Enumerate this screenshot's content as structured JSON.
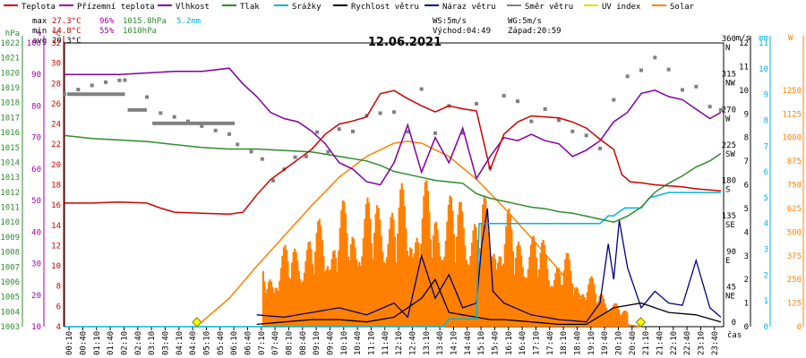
{
  "chart_data": {
    "type": "line",
    "title": "12.06.2021",
    "x_unit_label": "čas",
    "legend": [
      {
        "name": "Teplota",
        "color": "#cc0000"
      },
      {
        "name": "Přízemní teplota",
        "color": "#a000a0"
      },
      {
        "name": "Vlhkost",
        "color": "#8000a0"
      },
      {
        "name": "Tlak",
        "color": "#2e8b2e"
      },
      {
        "name": "Srážky",
        "color": "#00b4d8"
      },
      {
        "name": "Rychlost větru",
        "color": "#000000"
      },
      {
        "name": "Náraz větru",
        "color": "#00007f"
      },
      {
        "name": "Směr větru",
        "color": "#808080"
      },
      {
        "name": "UV index",
        "color": "#e0e000"
      },
      {
        "name": "Solar",
        "color": "#ff8000"
      }
    ],
    "stats": {
      "max_label": "max",
      "max_temp": "27.3°C",
      "max_hum": "96%",
      "max_press": "1015.8hPa",
      "rain": "5.2mm",
      "min_label": "min",
      "min_temp": "14.8°C",
      "min_hum": "55%",
      "min_press": "1010hPa",
      "avg_label": "avg",
      "avg_temp": "20.3°C",
      "ws": "WS:5m/s",
      "wg": "WG:5m/s",
      "sunrise": "Východ:04:49",
      "sunset": "Západ:20:59"
    },
    "axes": {
      "hpa": {
        "label": "hPa",
        "ticks": [
          "1022",
          "1021",
          "1020",
          "1019",
          "1018",
          "1017",
          "1016",
          "1015",
          "1014",
          "1013",
          "1012",
          "1011",
          "1010",
          "1009",
          "1008",
          "1007",
          "1006",
          "1005",
          "1004",
          "1003"
        ],
        "color": "#2e8b2e"
      },
      "pct": {
        "label": "%",
        "ticks": [
          "100",
          "90",
          "80",
          "70",
          "60",
          "50",
          "40",
          "30",
          "20",
          "10"
        ],
        "color": "#a000a0"
      },
      "celsius": {
        "label": "°C",
        "ticks": [
          "32",
          "30",
          "28",
          "26",
          "24",
          "22",
          "20",
          "18",
          "16",
          "14",
          "12",
          "10",
          "8",
          "6",
          "4"
        ],
        "color": "#cc0000"
      },
      "ms": {
        "label": "m/s",
        "ticks": [
          "12",
          "11",
          "10",
          "9",
          "8",
          "7",
          "6",
          "5",
          "4",
          "3",
          "2",
          "1",
          "0"
        ],
        "color": "#000000"
      },
      "dir": {
        "ticks": [
          "360",
          "315",
          "270",
          "225",
          "180",
          "135",
          "90",
          "45",
          "0"
        ],
        "names": [
          "N",
          "NW",
          "W",
          "SW",
          "S",
          "SE",
          "E",
          "NE",
          ""
        ]
      },
      "mm": {
        "label": "mm",
        "ticks": [
          "11",
          "10",
          "9",
          "8",
          "7",
          "6",
          "5",
          "4",
          "3",
          "2",
          "1",
          "0"
        ],
        "color": "#00b4d8"
      },
      "w": {
        "label": "W",
        "ticks": [
          "1500",
          "1375",
          "1250",
          "1125",
          "1000",
          "875",
          "750",
          "625",
          "500",
          "375",
          "250",
          "125",
          "0"
        ],
        "color": "#ff8000"
      }
    },
    "x_ticks": [
      "00:10",
      "00:40",
      "01:10",
      "01:40",
      "02:10",
      "02:40",
      "03:10",
      "03:40",
      "04:10",
      "04:40",
      "05:10",
      "05:40",
      "06:10",
      "06:40",
      "07:10",
      "07:40",
      "08:10",
      "08:40",
      "09:10",
      "09:40",
      "10:10",
      "10:40",
      "11:10",
      "11:40",
      "12:10",
      "12:40",
      "13:10",
      "13:40",
      "14:10",
      "14:40",
      "15:10",
      "15:40",
      "16:10",
      "16:40",
      "17:10",
      "17:40",
      "18:10",
      "18:40",
      "19:10",
      "19:40",
      "20:10",
      "20:40",
      "21:10",
      "21:40",
      "22:10",
      "22:40",
      "23:10",
      "23:40"
    ],
    "series": [
      {
        "name": "Teplota",
        "unit": "°C",
        "x": [
          0,
          1,
          2,
          3,
          3.5,
          4,
          5,
          6,
          6.5,
          7,
          7.5,
          8,
          8.5,
          9,
          9.5,
          10,
          10.5,
          11,
          11.5,
          12,
          12.5,
          13,
          13.5,
          14,
          14.5,
          15,
          15.5,
          16,
          16.5,
          17,
          17.5,
          18,
          18.5,
          19,
          19.5,
          20,
          20.3,
          20.6,
          21,
          21.5,
          22,
          22.5,
          23,
          23.5,
          23.9
        ],
        "y": [
          16.2,
          16.2,
          16.3,
          16.2,
          15.7,
          15.3,
          15.2,
          15.1,
          15.3,
          17.0,
          18.5,
          19.5,
          20.5,
          21.5,
          23.0,
          24.0,
          24.3,
          24.7,
          27.0,
          27.3,
          26.5,
          25.8,
          25.2,
          25.8,
          25.5,
          25.3,
          19.5,
          23.0,
          24.2,
          24.8,
          24.7,
          24.6,
          24.2,
          23.6,
          22.5,
          21.5,
          19.0,
          18.3,
          18.2,
          18.0,
          17.9,
          17.8,
          17.6,
          17.5,
          17.4
        ]
      },
      {
        "name": "Vlhkost",
        "unit": "%",
        "x": [
          0,
          1,
          2,
          3,
          4,
          5,
          6,
          6.5,
          7,
          7.5,
          8,
          8.5,
          9,
          9.5,
          10,
          10.5,
          11,
          11.5,
          12,
          12.5,
          13,
          13.5,
          14,
          14.5,
          15,
          15.5,
          16,
          16.5,
          17,
          17.5,
          18,
          18.5,
          19,
          19.5,
          20,
          20.5,
          21,
          21.5,
          22,
          22.5,
          23,
          23.5,
          23.9
        ],
        "y": [
          90,
          90,
          90,
          90.5,
          91,
          91,
          92,
          87,
          83,
          78,
          76,
          75,
          72,
          68,
          62,
          60,
          56,
          55,
          62,
          74,
          59,
          70,
          62,
          73,
          57,
          64,
          70,
          69,
          71,
          69,
          68,
          64,
          66,
          69,
          75,
          78,
          84,
          85,
          83,
          82,
          79,
          76,
          78
        ]
      },
      {
        "name": "Tlak",
        "unit": "hPa",
        "x": [
          0,
          1,
          2,
          3,
          4,
          5,
          6,
          7,
          8,
          9,
          10,
          11,
          11.5,
          12,
          12.5,
          13,
          13.5,
          14,
          14.5,
          15,
          15.5,
          16,
          16.5,
          17,
          17.5,
          18,
          18.5,
          19,
          19.5,
          20,
          20.5,
          21,
          21.5,
          22,
          22.5,
          23,
          23.5,
          23.9
        ],
        "y": [
          1015.8,
          1015.6,
          1015.5,
          1015.4,
          1015.2,
          1015.0,
          1014.9,
          1014.9,
          1014.8,
          1014.7,
          1014.4,
          1014.1,
          1013.8,
          1013.4,
          1013.2,
          1013.0,
          1012.8,
          1012.7,
          1012.6,
          1011.9,
          1011.6,
          1011.4,
          1011.2,
          1011.0,
          1010.9,
          1010.7,
          1010.6,
          1010.4,
          1010.2,
          1010.0,
          1010.4,
          1011.0,
          1012.0,
          1012.6,
          1013.1,
          1013.7,
          1014.1,
          1014.6
        ]
      },
      {
        "name": "Srážky",
        "unit": "mm",
        "x": [
          0,
          13.8,
          14.0,
          15.0,
          15.1,
          19.5,
          19.8,
          20.0,
          20.4,
          21.0,
          21.3,
          22.0,
          23.0,
          23.9
        ],
        "y": [
          0,
          0,
          0.3,
          0.3,
          4.0,
          4.0,
          4.3,
          4.3,
          4.6,
          4.6,
          5.0,
          5.2,
          5.2,
          5.2
        ]
      },
      {
        "name": "Solar",
        "unit": "W",
        "x": [
          4.8,
          6,
          7,
          8,
          9,
          10,
          11,
          12,
          12.5,
          13,
          14,
          15,
          16,
          17,
          18,
          19,
          20,
          21
        ],
        "y": [
          0,
          150,
          320,
          480,
          640,
          790,
          900,
          970,
          980,
          970,
          900,
          780,
          630,
          470,
          300,
          120,
          20,
          0
        ]
      },
      {
        "name": "Náraz větru",
        "unit": "m/s",
        "x": [
          7,
          8,
          9,
          10,
          11,
          12,
          12.5,
          13,
          13.5,
          14,
          14.5,
          15,
          15.2,
          15.4,
          15.6,
          16,
          17,
          18,
          19,
          19.5,
          19.8,
          20,
          20.2,
          20.5,
          21,
          21.5,
          22,
          22.5,
          23,
          23.5,
          23.9
        ],
        "y": [
          0.5,
          0.4,
          0.6,
          0.8,
          0.5,
          1.0,
          0.4,
          3.0,
          1.2,
          2.2,
          0.8,
          1.0,
          3.5,
          5.0,
          1.5,
          1.0,
          0.5,
          0.3,
          0.2,
          1.0,
          3.5,
          2.0,
          4.5,
          2.5,
          0.8,
          1.5,
          1.0,
          0.9,
          2.8,
          0.8,
          0.4
        ]
      },
      {
        "name": "Rychlost větru",
        "unit": "m/s",
        "x": [
          7,
          8,
          9,
          10,
          11,
          12,
          13,
          13.5,
          14,
          14.5,
          15,
          15.5,
          16,
          17,
          18,
          19,
          20,
          21,
          22,
          23,
          23.9
        ],
        "y": [
          0.1,
          0.2,
          0.3,
          0.3,
          0.2,
          0.4,
          1.2,
          2.0,
          0.6,
          0.5,
          0.4,
          0.3,
          0.3,
          0.2,
          0.1,
          0.1,
          0.8,
          1.0,
          0.6,
          0.5,
          0.2
        ]
      },
      {
        "name": "Směr větru",
        "unit": "°",
        "x": [
          0,
          0.5,
          1,
          1.5,
          2,
          2.2,
          3,
          3.5,
          4,
          4.5,
          5,
          5.5,
          6,
          6.3,
          6.8,
          7.2,
          7.6,
          8,
          8.4,
          8.8,
          9.2,
          9.6,
          10,
          10.5,
          11,
          11.5,
          12,
          12.5,
          13,
          13.5,
          14,
          14.5,
          15,
          15.5,
          16,
          16.5,
          17,
          17.5,
          18,
          18.5,
          19,
          19.5,
          20,
          20.5,
          21,
          21.5,
          22,
          22.5,
          23,
          23.5,
          23.9
        ],
        "y": [
          295,
          295,
          295,
          295,
          295,
          295,
          275,
          258,
          258,
          258,
          258,
          258,
          258,
          248,
          240,
          230,
          200,
          210,
          220,
          215,
          240,
          210,
          235,
          230,
          250,
          255,
          260,
          240,
          300,
          250,
          290,
          260,
          300,
          220,
          310,
          300,
          270,
          280,
          260,
          240,
          230,
          210,
          270,
          300,
          310,
          330,
          320,
          300,
          310,
          290,
          290
        ]
      }
    ],
    "x_range": [
      0,
      24
    ],
    "ylim_celsius": [
      4,
      32
    ],
    "ylim_pct": [
      10,
      100
    ],
    "ylim_hpa": [
      1003,
      1022
    ],
    "ylim_ms": [
      0,
      12
    ],
    "ylim_mm": [
      0,
      11
    ],
    "ylim_w": [
      0,
      1500
    ],
    "ylim_dir": [
      0,
      360
    ]
  }
}
